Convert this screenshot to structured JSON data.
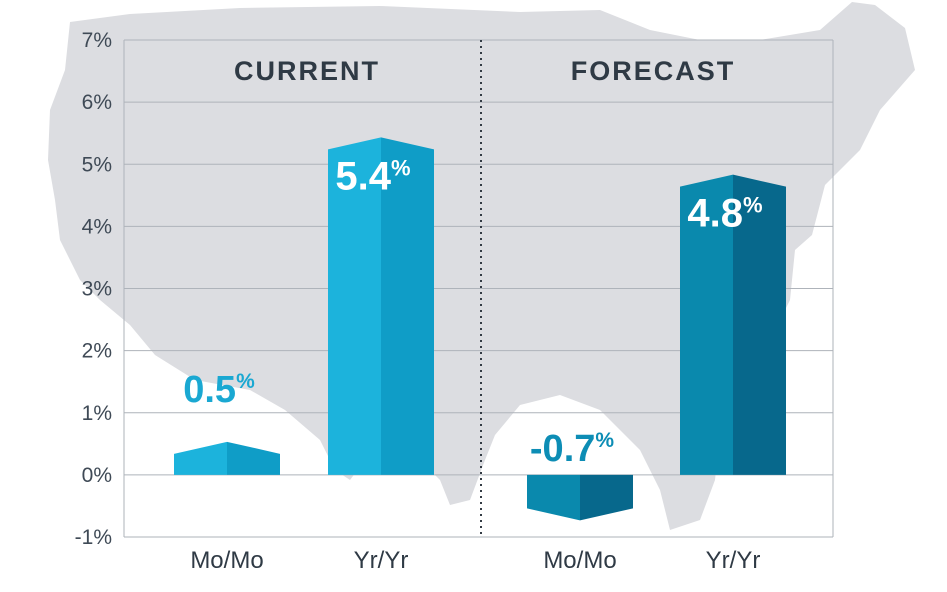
{
  "chart_data": {
    "type": "bar",
    "sections": [
      "CURRENT",
      "FORECAST"
    ],
    "categories": [
      "Mo/Mo",
      "Yr/Yr",
      "Mo/Mo",
      "Yr/Yr"
    ],
    "values": [
      0.5,
      5.4,
      -0.7,
      4.8
    ],
    "value_labels": [
      "0.5",
      "5.4",
      "-0.7",
      "4.8"
    ],
    "value_suffix": "%",
    "yticks": [
      "7%",
      "6%",
      "5%",
      "4%",
      "3%",
      "2%",
      "1%",
      "0%",
      "-1%"
    ],
    "ylim": [
      -1,
      7
    ],
    "grid": true,
    "title": "",
    "xlabel": "",
    "ylabel": ""
  },
  "colors": {
    "current_bar_light": "#1cb3dc",
    "current_bar_dark": "#0f9dc7",
    "current_label": "#1aa8d2",
    "forecast_bar_light": "#0a89ad",
    "forecast_bar_dark": "#07688c",
    "forecast_label": "#0d8db5",
    "map": "#dcdde1",
    "grid": "#aeb3ba"
  }
}
